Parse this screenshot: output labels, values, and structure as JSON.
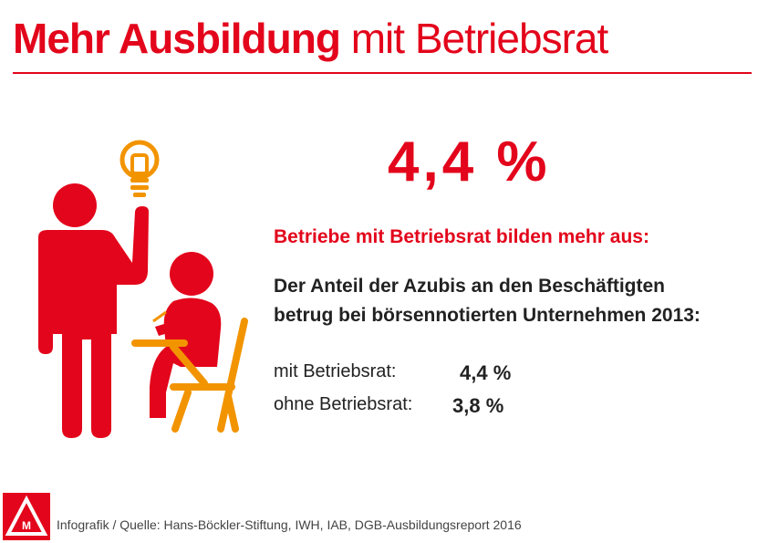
{
  "header": {
    "title_bold": "Mehr Ausbildung",
    "title_regular": "mit Betriebsrat"
  },
  "stat": {
    "headline_value": "4,4 %"
  },
  "content": {
    "subheading": "Betriebe mit Betriebsrat bilden mehr aus:",
    "description_line1": "Der Anteil der Azubis an den Beschäftigten",
    "description_line2": "betrug bei börsennotierten Unternehmen 2013:",
    "rows": [
      {
        "label": "mit Betriebsrat:",
        "value": "4,4 %"
      },
      {
        "label": "ohne Betriebsrat:",
        "value": "3,8 %"
      }
    ]
  },
  "footer": {
    "source": "Infografik / Quelle: Hans-Böckler-Stiftung, IWH, IAB, DGB-Ausbildungsreport 2016",
    "logo_name": "ig-metall-logo-icon"
  },
  "colors": {
    "brand_red": "#e3051b",
    "accent_orange": "#f29400",
    "text_dark": "#222222"
  }
}
